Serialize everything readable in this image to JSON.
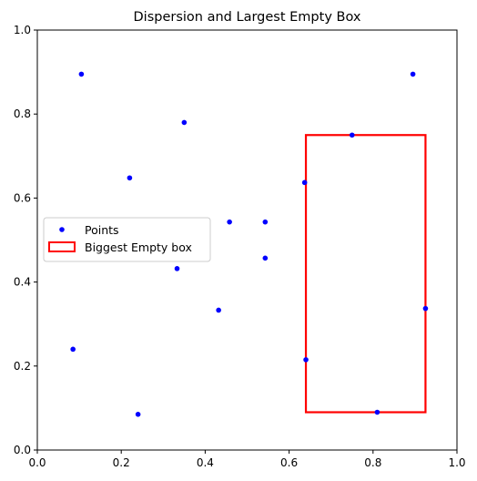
{
  "chart_data": {
    "type": "scatter",
    "title": "Dispersion and Largest Empty Box",
    "xlabel": "",
    "ylabel": "",
    "xlim": [
      0,
      1
    ],
    "ylim": [
      0,
      1
    ],
    "xticks": [
      "0.0",
      "0.2",
      "0.4",
      "0.6",
      "0.8",
      "1.0"
    ],
    "yticks": [
      "0.0",
      "0.2",
      "0.4",
      "0.6",
      "0.8",
      "1.0"
    ],
    "grid": false,
    "legend_position": "center-left",
    "series": [
      {
        "name": "Points",
        "color": "#0000ff",
        "points": [
          {
            "x": 0.105,
            "y": 0.895
          },
          {
            "x": 0.895,
            "y": 0.895
          },
          {
            "x": 0.35,
            "y": 0.78
          },
          {
            "x": 0.75,
            "y": 0.75
          },
          {
            "x": 0.22,
            "y": 0.648
          },
          {
            "x": 0.637,
            "y": 0.637
          },
          {
            "x": 0.458,
            "y": 0.543
          },
          {
            "x": 0.543,
            "y": 0.543
          },
          {
            "x": 0.543,
            "y": 0.457
          },
          {
            "x": 0.333,
            "y": 0.432
          },
          {
            "x": 0.432,
            "y": 0.333
          },
          {
            "x": 0.925,
            "y": 0.337
          },
          {
            "x": 0.085,
            "y": 0.24
          },
          {
            "x": 0.64,
            "y": 0.215
          },
          {
            "x": 0.81,
            "y": 0.09
          },
          {
            "x": 0.24,
            "y": 0.085
          }
        ]
      }
    ],
    "box": {
      "name": "Biggest Empty box",
      "color": "#ff0000",
      "x0": 0.64,
      "x1": 0.925,
      "y0": 0.09,
      "y1": 0.75
    }
  }
}
